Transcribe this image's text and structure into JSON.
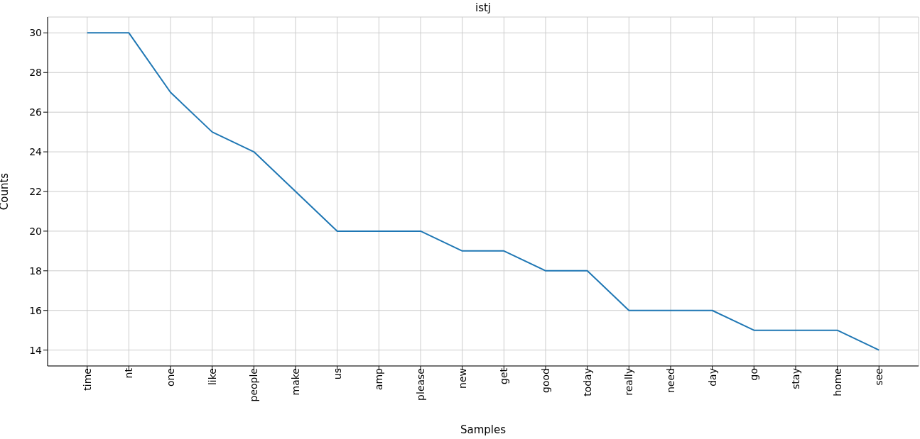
{
  "chart_data": {
    "type": "line",
    "title": "istj",
    "xlabel": "Samples",
    "ylabel": "Counts",
    "categories": [
      "time",
      "nt",
      "one",
      "like",
      "people",
      "make",
      "us",
      "amp",
      "please",
      "new",
      "get",
      "good",
      "today",
      "really",
      "need",
      "day",
      "go",
      "stay",
      "home",
      "see"
    ],
    "series": [
      {
        "color": "#1f77b4",
        "values": [
          30,
          30,
          27,
          25,
          24,
          22,
          20,
          20,
          20,
          19,
          19,
          18,
          18,
          16,
          16,
          16,
          15,
          15,
          15,
          14
        ]
      }
    ],
    "ylim": [
      13.2,
      30.8
    ],
    "yticks": [
      14,
      16,
      18,
      20,
      22,
      24,
      26,
      28,
      30
    ],
    "grid": true,
    "marker": "none",
    "line_style": "solid"
  }
}
